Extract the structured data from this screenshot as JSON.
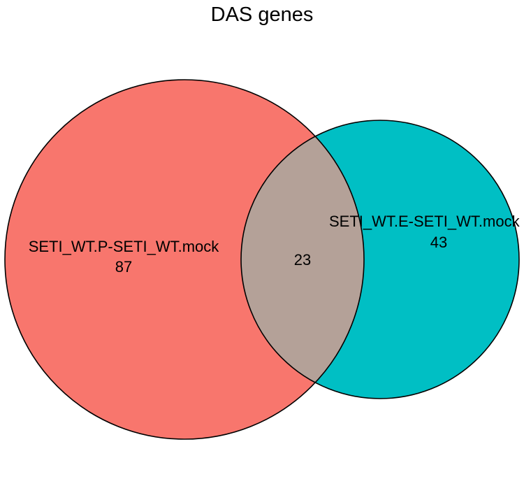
{
  "chart_data": {
    "type": "venn",
    "title": "DAS genes",
    "sets": [
      {
        "name": "SETI_WT.P-SETI_WT.mock",
        "only_count": "87",
        "color": "#F8766D"
      },
      {
        "name": "SETI_WT.E-SETI_WT.mock",
        "only_count": "43",
        "color": "#00BFC4"
      }
    ],
    "intersection": {
      "count": "23",
      "color": "#B4A198"
    },
    "outline_color": "#000000"
  }
}
